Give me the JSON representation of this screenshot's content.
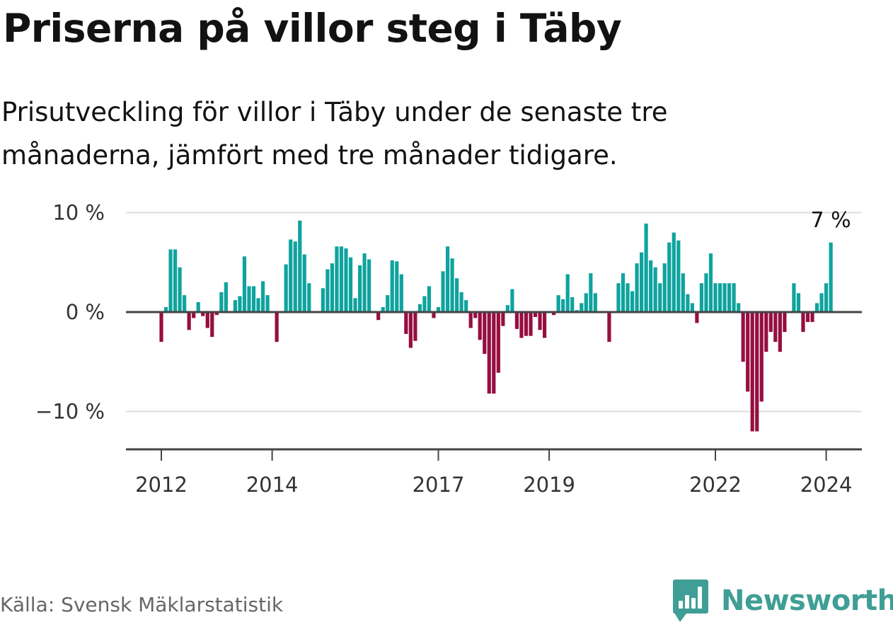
{
  "header": {
    "title": "Priserna på villor steg i Täby",
    "subtitle": "Prisutveckling för villor i Täby under de senaste tre månaderna, jämfört med tre månader tidigare."
  },
  "footer": {
    "source": "Källa: Svensk Mäklarstatistik",
    "brand": "Newsworthy",
    "brand_icon": "bar-chart-logo-icon"
  },
  "colors": {
    "positive": "#0fa39e",
    "negative": "#960e40",
    "grid": "#dddddd",
    "axis": "#444444",
    "brand": "#3f9e95"
  },
  "chart_data": {
    "type": "bar",
    "title": "Priserna på villor steg i Täby",
    "xlabel": "",
    "ylabel": "",
    "unit": "%",
    "ylim": [
      -13.5,
      10
    ],
    "yticks": [
      {
        "value": 10,
        "label": "10 %"
      },
      {
        "value": 0,
        "label": "0 %"
      },
      {
        "value": -10,
        "label": "−10 %"
      }
    ],
    "xticks": [
      {
        "value": 2012,
        "label": "2012"
      },
      {
        "value": 2014,
        "label": "2014"
      },
      {
        "value": 2017,
        "label": "2017"
      },
      {
        "value": 2019,
        "label": "2019"
      },
      {
        "value": 2022,
        "label": "2022"
      },
      {
        "value": 2024,
        "label": "2024"
      }
    ],
    "x_start": 2012,
    "x_step_months": 1,
    "last_value_label": "7 %",
    "values": [
      -3,
      0.5,
      6.3,
      6.3,
      4.5,
      1.7,
      -1.8,
      -0.6,
      1,
      -0.4,
      -1.6,
      -2.5,
      -0.3,
      2,
      3,
      0.1,
      1.2,
      1.6,
      5.6,
      2.6,
      2.6,
      1.4,
      3.1,
      1.7,
      0,
      -3,
      0,
      4.8,
      7.3,
      7.1,
      9.2,
      5.8,
      2.9,
      0,
      0,
      2.4,
      4.3,
      4.9,
      6.6,
      6.6,
      6.4,
      5.5,
      1.4,
      4.7,
      5.9,
      5.3,
      0,
      -0.8,
      0.5,
      1.7,
      5.2,
      5.1,
      3.8,
      -2.2,
      -3.6,
      -2.9,
      0.8,
      1.6,
      2.6,
      -0.6,
      0.5,
      4.1,
      6.6,
      5.4,
      3.4,
      2,
      1.2,
      -1.6,
      -0.6,
      -2.8,
      -4.2,
      -8.2,
      -8.2,
      -6.1,
      -1.4,
      0.7,
      2.3,
      -1.7,
      -2.6,
      -2.4,
      -2.4,
      -0.5,
      -1.8,
      -2.6,
      0,
      -0.3,
      1.7,
      1.3,
      3.8,
      1.5,
      0.2,
      0.9,
      1.9,
      3.9,
      1.9,
      0,
      0,
      -3,
      0,
      2.9,
      3.9,
      2.9,
      2.1,
      4.9,
      6,
      8.9,
      5.2,
      4.5,
      2.9,
      4.9,
      7,
      8,
      7.2,
      3.9,
      1.8,
      0.9,
      -1.1,
      2.9,
      3.9,
      5.9,
      2.9,
      2.9,
      2.9,
      2.9,
      2.9,
      0.9,
      -5,
      -8,
      -12,
      -12,
      -9,
      -4,
      -2,
      -3,
      -4,
      -2,
      0,
      2.9,
      1.9,
      -2,
      -1,
      -1,
      0.9,
      1.9,
      2.9,
      7
    ]
  }
}
